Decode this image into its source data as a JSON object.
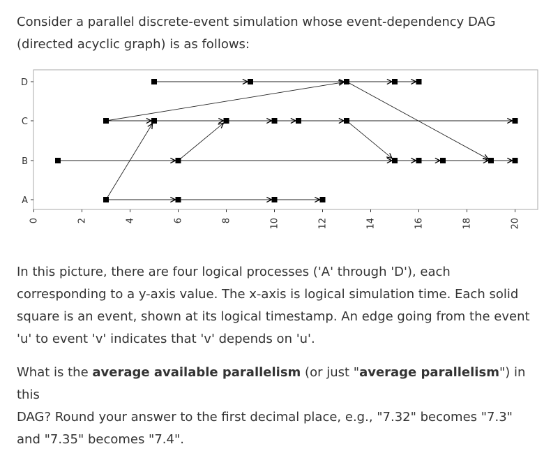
{
  "intro": {
    "line1": "Consider a parallel discrete-event simulation whose event-dependency DAG",
    "line2": "(directed acyclic graph) is as follows:"
  },
  "description": {
    "line1": "In this picture, there are four logical processes ('A' through 'D'), each",
    "line2": "corresponding to a y-axis value. The x-axis is logical simulation time. Each solid",
    "line3": "square is an event, shown at its logical timestamp. An edge going from the event",
    "line4": "'u' to event 'v' indicates that 'v' depends on 'u'."
  },
  "question": {
    "prefix": "What is the ",
    "bold1": "average available parallelism",
    "mid": " (or just \"",
    "bold2": "average parallelism",
    "suffix": "\") in this",
    "line2": "DAG? Round your answer to the first decimal place, e.g., \"7.32\" becomes \"7.3\"",
    "line3": "and \"7.35\" becomes \"7.4\"."
  },
  "chart_data": {
    "type": "scatter",
    "xlim": [
      0,
      21
    ],
    "x_ticks": [
      0,
      2,
      4,
      6,
      8,
      10,
      12,
      14,
      16,
      18,
      20
    ],
    "y_categories": [
      "A",
      "B",
      "C",
      "D"
    ],
    "events": {
      "A": [
        3,
        6,
        10,
        12
      ],
      "B": [
        1,
        6,
        15,
        16,
        17,
        19,
        20
      ],
      "C": [
        3,
        5,
        8,
        10,
        11,
        13,
        20
      ],
      "D": [
        5,
        9,
        13,
        15,
        16
      ]
    },
    "edges": [
      [
        [
          "A",
          3
        ],
        [
          "A",
          6
        ]
      ],
      [
        [
          "A",
          6
        ],
        [
          "A",
          10
        ]
      ],
      [
        [
          "A",
          10
        ],
        [
          "A",
          12
        ]
      ],
      [
        [
          "A",
          3
        ],
        [
          "C",
          5
        ]
      ],
      [
        [
          "B",
          1
        ],
        [
          "B",
          6
        ]
      ],
      [
        [
          "B",
          6
        ],
        [
          "B",
          15
        ]
      ],
      [
        [
          "B",
          15
        ],
        [
          "B",
          16
        ]
      ],
      [
        [
          "B",
          16
        ],
        [
          "B",
          17
        ]
      ],
      [
        [
          "B",
          17
        ],
        [
          "B",
          19
        ]
      ],
      [
        [
          "B",
          19
        ],
        [
          "B",
          20
        ]
      ],
      [
        [
          "B",
          6
        ],
        [
          "C",
          8
        ]
      ],
      [
        [
          "C",
          3
        ],
        [
          "C",
          5
        ]
      ],
      [
        [
          "C",
          5
        ],
        [
          "C",
          8
        ]
      ],
      [
        [
          "C",
          8
        ],
        [
          "C",
          10
        ]
      ],
      [
        [
          "C",
          10
        ],
        [
          "C",
          11
        ]
      ],
      [
        [
          "C",
          11
        ],
        [
          "C",
          13
        ]
      ],
      [
        [
          "C",
          13
        ],
        [
          "C",
          20
        ]
      ],
      [
        [
          "C",
          3
        ],
        [
          "D",
          13
        ]
      ],
      [
        [
          "C",
          13
        ],
        [
          "B",
          15
        ]
      ],
      [
        [
          "D",
          5
        ],
        [
          "D",
          9
        ]
      ],
      [
        [
          "D",
          9
        ],
        [
          "D",
          13
        ]
      ],
      [
        [
          "D",
          13
        ],
        [
          "D",
          15
        ]
      ],
      [
        [
          "D",
          15
        ],
        [
          "D",
          16
        ]
      ],
      [
        [
          "D",
          13
        ],
        [
          "B",
          19
        ]
      ]
    ],
    "grid": false
  }
}
